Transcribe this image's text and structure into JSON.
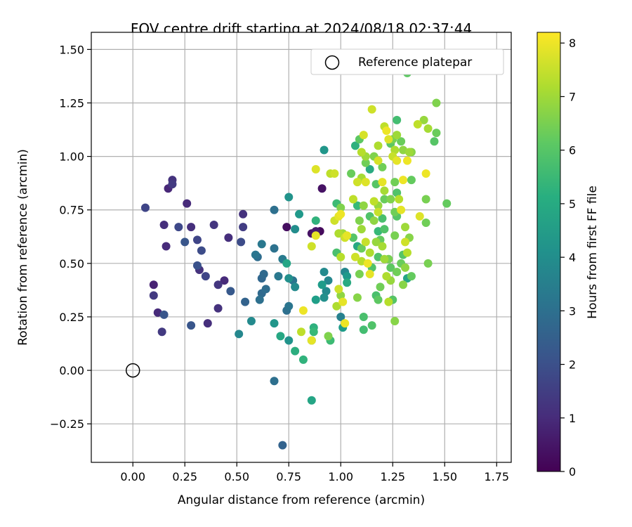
{
  "chart_data": {
    "type": "scatter",
    "title": "FOV centre drift starting at 2024/08/18 02:37:44",
    "xlabel": "Angular distance from reference (arcmin)",
    "ylabel": "Rotation from reference (arcmin)",
    "xlim": [
      -0.2,
      1.82
    ],
    "ylim": [
      -0.43,
      1.58
    ],
    "xticks": [
      "0.00",
      "0.25",
      "0.50",
      "0.75",
      "1.00",
      "1.25",
      "1.50",
      "1.75"
    ],
    "xtick_values": [
      0,
      0.25,
      0.5,
      0.75,
      1.0,
      1.25,
      1.5,
      1.75
    ],
    "yticks": [
      "−0.25",
      "0.00",
      "0.25",
      "0.50",
      "0.75",
      "1.00",
      "1.25",
      "1.50"
    ],
    "ytick_values": [
      -0.25,
      0,
      0.25,
      0.5,
      0.75,
      1.0,
      1.25,
      1.5
    ],
    "grid": true,
    "legend": {
      "label": "Reference platepar",
      "placement": "top-right",
      "marker": "open-circle"
    },
    "reference_point": {
      "x": 0,
      "y": 0
    },
    "colorbar": {
      "label": "Hours from first FF file",
      "colormap": "viridis",
      "range": [
        0,
        8.2
      ],
      "ticks": [
        "0",
        "1",
        "2",
        "3",
        "4",
        "5",
        "6",
        "7",
        "8"
      ],
      "tick_values": [
        0,
        1,
        2,
        3,
        4,
        5,
        6,
        7,
        8
      ]
    },
    "series": [
      {
        "points": [
          [
            0.06,
            0.76,
            1.7
          ],
          [
            0.19,
            0.89,
            1.2
          ],
          [
            0.19,
            0.87,
            1.4
          ],
          [
            0.17,
            0.85,
            0.9
          ],
          [
            0.26,
            0.78,
            1.0
          ],
          [
            0.15,
            0.68,
            1.1
          ],
          [
            0.22,
            0.67,
            1.8
          ],
          [
            0.28,
            0.67,
            1.1
          ],
          [
            0.16,
            0.58,
            1.0
          ],
          [
            0.25,
            0.6,
            2.2
          ],
          [
            0.31,
            0.61,
            1.7
          ],
          [
            0.33,
            0.56,
            1.9
          ],
          [
            0.39,
            0.68,
            1.3
          ],
          [
            0.46,
            0.62,
            1.1
          ],
          [
            0.53,
            0.73,
            1.2
          ],
          [
            0.53,
            0.67,
            1.5
          ],
          [
            0.52,
            0.6,
            1.9
          ],
          [
            0.31,
            0.49,
            2.1
          ],
          [
            0.32,
            0.47,
            1.2
          ],
          [
            0.35,
            0.44,
            1.7
          ],
          [
            0.41,
            0.4,
            1.3
          ],
          [
            0.44,
            0.42,
            1.0
          ],
          [
            0.47,
            0.37,
            2.3
          ],
          [
            0.1,
            0.4,
            0.8
          ],
          [
            0.1,
            0.35,
            1.4
          ],
          [
            0.12,
            0.27,
            1.0
          ],
          [
            0.15,
            0.26,
            2.2
          ],
          [
            0.14,
            0.18,
            1.4
          ],
          [
            0.28,
            0.21,
            2.2
          ],
          [
            0.36,
            0.22,
            1.1
          ],
          [
            0.41,
            0.29,
            1.2
          ],
          [
            0.54,
            0.32,
            2.6
          ],
          [
            0.51,
            0.17,
            3.8
          ],
          [
            0.57,
            0.23,
            3.9
          ],
          [
            0.59,
            0.54,
            3.2
          ],
          [
            0.62,
            0.59,
            3.3
          ],
          [
            0.6,
            0.53,
            2.9
          ],
          [
            0.68,
            0.57,
            3.1
          ],
          [
            0.68,
            0.75,
            3.0
          ],
          [
            0.75,
            0.81,
            4.2
          ],
          [
            0.8,
            0.73,
            4.4
          ],
          [
            0.74,
            0.67,
            0.3
          ],
          [
            0.78,
            0.66,
            4.0
          ],
          [
            0.72,
            0.52,
            3.4
          ],
          [
            0.74,
            0.5,
            4.8
          ],
          [
            0.63,
            0.45,
            2.8
          ],
          [
            0.62,
            0.43,
            2.7
          ],
          [
            0.64,
            0.38,
            2.9
          ],
          [
            0.62,
            0.36,
            2.8
          ],
          [
            0.61,
            0.33,
            3.0
          ],
          [
            0.7,
            0.44,
            3.3
          ],
          [
            0.75,
            0.43,
            4.1
          ],
          [
            0.77,
            0.42,
            3.2
          ],
          [
            0.78,
            0.39,
            3.9
          ],
          [
            0.75,
            0.3,
            3.2
          ],
          [
            0.74,
            0.28,
            3.0
          ],
          [
            0.68,
            0.22,
            4.3
          ],
          [
            0.71,
            0.16,
            4.9
          ],
          [
            0.75,
            0.14,
            4.2
          ],
          [
            0.78,
            0.09,
            5.1
          ],
          [
            0.82,
            0.05,
            5.3
          ],
          [
            0.68,
            -0.05,
            3.0
          ],
          [
            0.72,
            -0.35,
            2.6
          ],
          [
            0.86,
            -0.14,
            4.8
          ],
          [
            0.87,
            0.2,
            5.2
          ],
          [
            0.87,
            0.18,
            5.5
          ],
          [
            0.86,
            0.14,
            4.4
          ],
          [
            0.86,
            0.14,
            7.9
          ],
          [
            0.81,
            0.18,
            7.4
          ],
          [
            0.82,
            0.28,
            8.0
          ],
          [
            0.88,
            0.33,
            4.6
          ],
          [
            0.92,
            0.34,
            4.1
          ],
          [
            0.93,
            0.37,
            3.9
          ],
          [
            0.91,
            0.4,
            4.5
          ],
          [
            0.94,
            0.42,
            3.8
          ],
          [
            0.92,
            0.46,
            3.9
          ],
          [
            0.86,
            0.58,
            7.6
          ],
          [
            0.88,
            0.63,
            7.9
          ],
          [
            0.88,
            0.65,
            0.6
          ],
          [
            0.86,
            0.64,
            0.4
          ],
          [
            0.9,
            0.65,
            0.2
          ],
          [
            0.88,
            0.7,
            5.3
          ],
          [
            0.91,
            0.85,
            0.4
          ],
          [
            0.88,
            0.94,
            7.8
          ],
          [
            0.92,
            1.03,
            4.3
          ],
          [
            0.95,
            0.92,
            7.4
          ],
          [
            0.97,
            0.92,
            7.6
          ],
          [
            0.97,
            0.7,
            7.6
          ],
          [
            0.99,
            0.72,
            7.9
          ],
          [
            1.0,
            0.73,
            8.0
          ],
          [
            0.98,
            0.78,
            5.6
          ],
          [
            1.0,
            0.76,
            6.6
          ],
          [
            1.01,
            0.64,
            7.0
          ],
          [
            1.02,
            0.62,
            7.6
          ],
          [
            1.03,
            0.63,
            7.9
          ],
          [
            0.99,
            0.64,
            7.2
          ],
          [
            0.98,
            0.55,
            5.8
          ],
          [
            1.0,
            0.53,
            7.3
          ],
          [
            1.02,
            0.46,
            3.8
          ],
          [
            1.03,
            0.44,
            4.4
          ],
          [
            1.03,
            0.41,
            5.0
          ],
          [
            0.99,
            0.38,
            7.6
          ],
          [
            1.0,
            0.35,
            6.8
          ],
          [
            0.98,
            0.3,
            7.2
          ],
          [
            1.01,
            0.32,
            7.9
          ],
          [
            1.0,
            0.25,
            3.6
          ],
          [
            1.01,
            0.2,
            4.5
          ],
          [
            1.02,
            0.22,
            8.0
          ],
          [
            0.94,
            0.16,
            6.6
          ],
          [
            0.95,
            0.14,
            5.6
          ],
          [
            1.05,
            0.92,
            6.3
          ],
          [
            1.07,
            1.05,
            5.2
          ],
          [
            1.09,
            1.08,
            6.1
          ],
          [
            1.11,
            1.1,
            7.7
          ],
          [
            1.1,
            1.02,
            7.3
          ],
          [
            1.12,
            1.0,
            7.0
          ],
          [
            1.14,
            0.94,
            5.0
          ],
          [
            1.12,
            0.97,
            6.4
          ],
          [
            1.08,
            0.88,
            7.6
          ],
          [
            1.1,
            0.9,
            7.1
          ],
          [
            1.12,
            0.88,
            7.8
          ],
          [
            1.06,
            0.8,
            7.4
          ],
          [
            1.08,
            0.77,
            5.5
          ],
          [
            1.11,
            0.77,
            6.8
          ],
          [
            1.14,
            0.72,
            5.9
          ],
          [
            1.09,
            0.7,
            6.6
          ],
          [
            1.1,
            0.66,
            7.0
          ],
          [
            1.06,
            0.62,
            6.0
          ],
          [
            1.08,
            0.58,
            4.9
          ],
          [
            1.1,
            0.57,
            6.3
          ],
          [
            1.12,
            0.6,
            7.5
          ],
          [
            1.14,
            0.55,
            7.2
          ],
          [
            1.07,
            0.53,
            7.6
          ],
          [
            1.1,
            0.51,
            7.3
          ],
          [
            1.13,
            0.5,
            8.0
          ],
          [
            1.15,
            0.48,
            5.9
          ],
          [
            1.09,
            0.45,
            6.5
          ],
          [
            1.14,
            0.45,
            7.9
          ],
          [
            1.08,
            0.34,
            6.7
          ],
          [
            1.11,
            0.25,
            5.8
          ],
          [
            1.11,
            0.19,
            5.7
          ],
          [
            1.15,
            0.21,
            5.9
          ],
          [
            1.15,
            1.22,
            7.6
          ],
          [
            1.18,
            1.05,
            7.2
          ],
          [
            1.16,
            1.0,
            6.6
          ],
          [
            1.18,
            0.98,
            7.7
          ],
          [
            1.2,
            0.95,
            6.4
          ],
          [
            1.17,
            0.87,
            6.0
          ],
          [
            1.2,
            0.88,
            7.9
          ],
          [
            1.21,
            0.84,
            7.1
          ],
          [
            1.21,
            0.8,
            6.3
          ],
          [
            1.16,
            0.79,
            7.4
          ],
          [
            1.18,
            0.77,
            6.9
          ],
          [
            1.18,
            0.74,
            7.5
          ],
          [
            1.2,
            0.71,
            5.8
          ],
          [
            1.16,
            0.7,
            6.8
          ],
          [
            1.18,
            0.65,
            5.5
          ],
          [
            1.21,
            0.66,
            5.9
          ],
          [
            1.19,
            0.61,
            6.2
          ],
          [
            1.17,
            0.6,
            6.9
          ],
          [
            1.2,
            0.58,
            7.1
          ],
          [
            1.18,
            0.53,
            5.9
          ],
          [
            1.21,
            0.52,
            7.0
          ],
          [
            1.23,
            0.52,
            6.5
          ],
          [
            1.24,
            0.48,
            6.1
          ],
          [
            1.22,
            0.44,
            7.2
          ],
          [
            1.24,
            0.42,
            6.9
          ],
          [
            1.19,
            0.39,
            6.4
          ],
          [
            1.17,
            0.35,
            5.8
          ],
          [
            1.18,
            0.33,
            6.1
          ],
          [
            1.23,
            0.32,
            7.3
          ],
          [
            1.25,
            0.33,
            6.0
          ],
          [
            1.26,
            0.23,
            6.7
          ],
          [
            1.21,
            1.14,
            7.4
          ],
          [
            1.23,
            1.08,
            7.8
          ],
          [
            1.22,
            1.12,
            8.0
          ],
          [
            1.25,
            1.08,
            6.5
          ],
          [
            1.27,
            1.1,
            7.0
          ],
          [
            1.29,
            1.07,
            6.3
          ],
          [
            1.26,
            1.03,
            7.2
          ],
          [
            1.24,
            1.06,
            6.1
          ],
          [
            1.25,
            1.0,
            7.5
          ],
          [
            1.27,
            0.98,
            7.9
          ],
          [
            1.3,
            1.03,
            6.8
          ],
          [
            1.27,
            1.17,
            5.7
          ],
          [
            1.32,
            1.39,
            6.1
          ],
          [
            1.33,
            1.02,
            7.0
          ],
          [
            1.34,
            1.02,
            6.7
          ],
          [
            1.32,
            0.98,
            8.0
          ],
          [
            1.3,
            0.89,
            8.0
          ],
          [
            1.34,
            0.89,
            6.2
          ],
          [
            1.26,
            0.88,
            6.4
          ],
          [
            1.27,
            0.83,
            5.9
          ],
          [
            1.24,
            0.8,
            6.6
          ],
          [
            1.28,
            0.8,
            7.3
          ],
          [
            1.26,
            0.74,
            6.4
          ],
          [
            1.29,
            0.75,
            7.9
          ],
          [
            1.27,
            0.72,
            6.0
          ],
          [
            1.31,
            0.67,
            7.0
          ],
          [
            1.26,
            0.63,
            6.5
          ],
          [
            1.31,
            0.6,
            7.6
          ],
          [
            1.33,
            0.62,
            6.7
          ],
          [
            1.3,
            0.54,
            6.0
          ],
          [
            1.32,
            0.55,
            7.3
          ],
          [
            1.29,
            0.5,
            6.3
          ],
          [
            1.31,
            0.48,
            6.8
          ],
          [
            1.27,
            0.46,
            6.4
          ],
          [
            1.32,
            0.43,
            4.8
          ],
          [
            1.3,
            0.4,
            6.7
          ],
          [
            1.34,
            0.44,
            6.2
          ],
          [
            1.37,
            1.15,
            7.4
          ],
          [
            1.4,
            1.17,
            6.9
          ],
          [
            1.42,
            1.13,
            7.1
          ],
          [
            1.46,
            1.25,
            6.6
          ],
          [
            1.46,
            1.11,
            6.3
          ],
          [
            1.45,
            1.07,
            6.0
          ],
          [
            1.41,
            0.92,
            8.0
          ],
          [
            1.41,
            0.8,
            6.5
          ],
          [
            1.38,
            0.72,
            7.8
          ],
          [
            1.41,
            0.69,
            6.4
          ],
          [
            1.42,
            0.5,
            6.5
          ],
          [
            1.51,
            0.78,
            6.2
          ]
        ]
      }
    ]
  }
}
